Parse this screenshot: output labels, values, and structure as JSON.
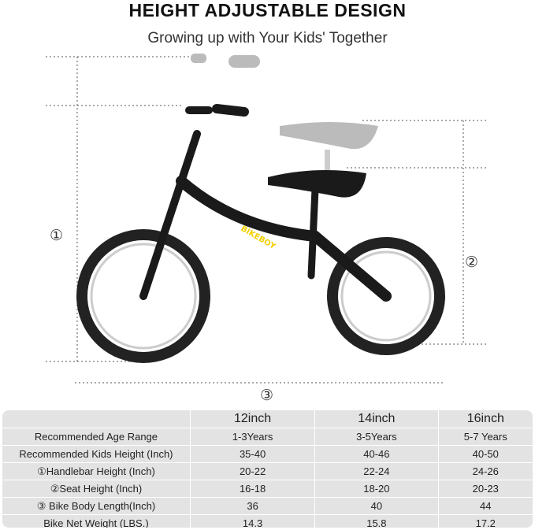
{
  "title": "HEIGHT ADJUSTABLE DESIGN",
  "subtitle": "Growing up with Your Kids' Together",
  "brand_logo": "BIKEBOY",
  "markers": [
    "①",
    "②",
    "③"
  ],
  "table": {
    "columns": [
      "",
      "12inch",
      "14inch",
      "16inch"
    ],
    "rows": [
      [
        "Recommended Age Range",
        "1-3Years",
        "3-5Years",
        "5-7 Years"
      ],
      [
        "Recommended Kids Height (Inch)",
        "35-40",
        "40-46",
        "40-50"
      ],
      [
        "①Handlebar Height (Inch)",
        "20-22",
        "22-24",
        "24-26"
      ],
      [
        "②Seat Height (Inch)",
        "16-18",
        "18-20",
        "20-23"
      ],
      [
        "③ Bike Body Length(Inch)",
        "36",
        "40",
        "44"
      ],
      [
        "Bike Net Weight (LBS.)",
        "14.3",
        "15.8",
        "17.2"
      ]
    ]
  }
}
